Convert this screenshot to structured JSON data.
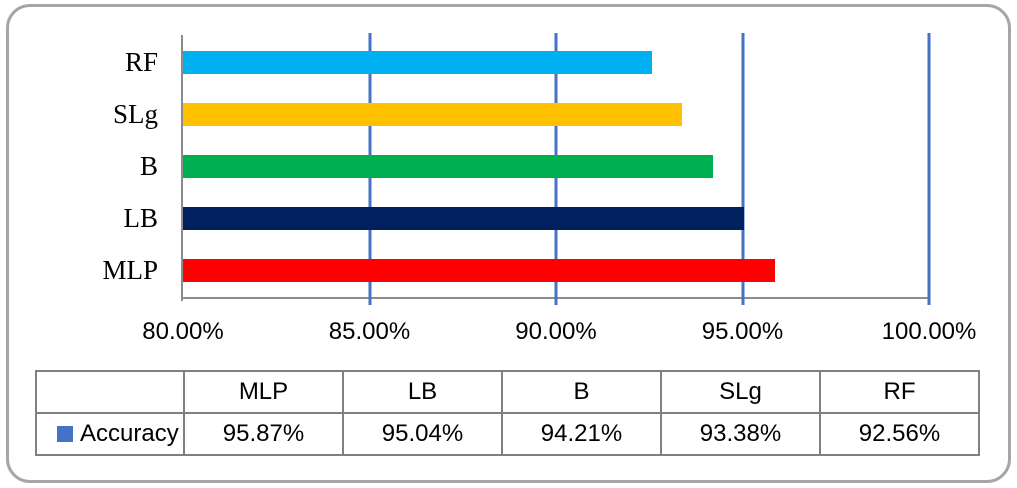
{
  "chart_data": {
    "type": "bar",
    "orientation": "horizontal",
    "title": "",
    "xlabel": "",
    "ylabel": "",
    "categories": [
      "RF",
      "SLg",
      "B",
      "LB",
      "MLP"
    ],
    "series": [
      {
        "name": "Accuracy",
        "values": [
          92.56,
          93.38,
          94.21,
          95.04,
          95.87
        ]
      }
    ],
    "xlim": [
      80,
      100
    ],
    "x_ticks": [
      {
        "value": 80,
        "label": "80.00%"
      },
      {
        "value": 85,
        "label": "85.00%"
      },
      {
        "value": 90,
        "label": "90.00%"
      },
      {
        "value": 95,
        "label": "95.00%"
      },
      {
        "value": 100,
        "label": "100.00%"
      }
    ],
    "grid": true,
    "gridline_color": "#4472C4",
    "bar_colors": [
      "#00B0F0",
      "#FFC000",
      "#00B050",
      "#002060",
      "#FF0000"
    ],
    "legend_position": "table-row-left"
  },
  "table": {
    "columns": [
      "MLP",
      "LB",
      "B",
      "SLg",
      "RF"
    ],
    "rows": [
      {
        "label": "Accuracy",
        "marker_color": "#4472C4",
        "values": [
          "95.87%",
          "95.04%",
          "94.21%",
          "93.38%",
          "92.56%"
        ]
      }
    ]
  }
}
